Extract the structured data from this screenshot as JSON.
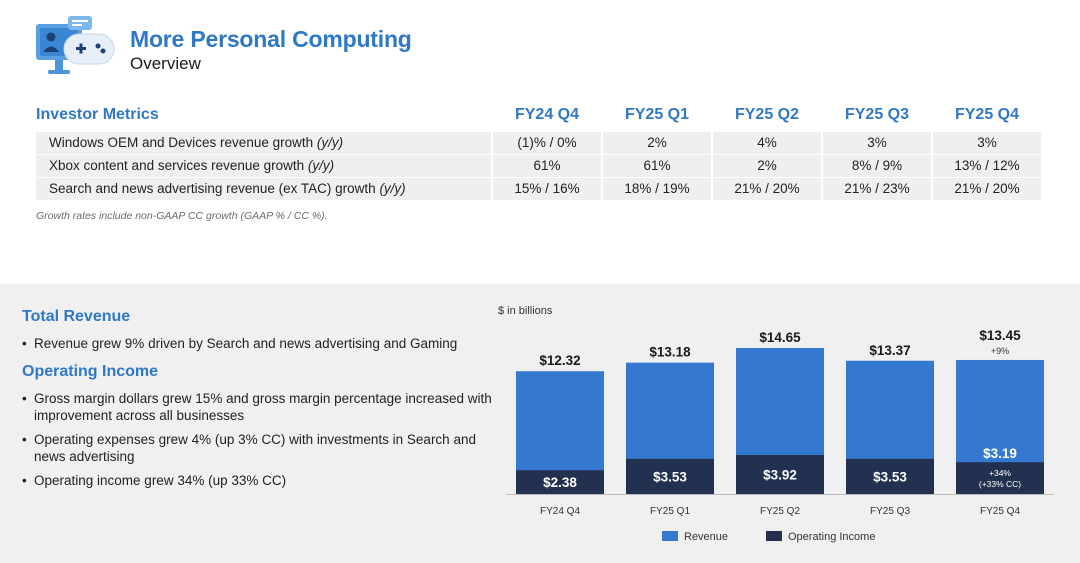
{
  "header": {
    "title": "More Personal Computing",
    "subtitle": "Overview"
  },
  "metrics": {
    "heading": "Investor Metrics",
    "columns": [
      "FY24 Q4",
      "FY25 Q1",
      "FY25 Q2",
      "FY25 Q3",
      "FY25 Q4"
    ],
    "rows": [
      {
        "label": "Windows OEM and Devices revenue growth",
        "suffix": "(y/y)",
        "values": [
          "(1)% / 0%",
          "2%",
          "4%",
          "3%",
          "3%"
        ]
      },
      {
        "label": "Xbox content and services revenue growth",
        "suffix": "(y/y)",
        "values": [
          "61%",
          "61%",
          "2%",
          "8% / 9%",
          "13% / 12%"
        ]
      },
      {
        "label": "Search and news advertising revenue (ex TAC) growth",
        "suffix": "(y/y)",
        "values": [
          "15% / 16%",
          "18% / 19%",
          "21% / 20%",
          "21% / 23%",
          "21% / 20%"
        ]
      }
    ],
    "note": "Growth rates include non-GAAP CC growth (GAAP % / CC %)."
  },
  "summary": {
    "revenue_title": "Total Revenue",
    "revenue_bullets": [
      "Revenue grew 9% driven by Search and news advertising and Gaming"
    ],
    "opinc_title": "Operating Income",
    "opinc_bullets": [
      "Gross margin dollars grew 15% and gross margin percentage increased with improvement across all businesses",
      "Operating expenses grew 4% (up 3% CC) with investments in Search and news advertising",
      "Operating income grew 34% (up 33% CC)"
    ]
  },
  "chart_data": {
    "type": "bar",
    "unit_label": "$ in billions",
    "categories": [
      "FY24 Q4",
      "FY25 Q1",
      "FY25 Q2",
      "FY25 Q3",
      "FY25 Q4"
    ],
    "series": [
      {
        "name": "Revenue",
        "values": [
          12.32,
          13.18,
          14.65,
          13.37,
          13.45
        ],
        "labels": [
          "$12.32",
          "$13.18",
          "$14.65",
          "$13.37",
          "$13.45"
        ],
        "color": "#3478d0"
      },
      {
        "name": "Operating Income",
        "values": [
          2.38,
          3.53,
          3.92,
          3.53,
          3.19
        ],
        "labels": [
          "$2.38",
          "$3.53",
          "$3.92",
          "$3.53",
          "$3.19"
        ],
        "color": "#22314f"
      }
    ],
    "annotations": [
      {
        "category": "FY25 Q4",
        "series": "Revenue",
        "text": "+9%"
      },
      {
        "category": "FY25 Q4",
        "series": "Operating Income",
        "lines": [
          "+34%",
          "(+33% CC)"
        ]
      }
    ],
    "ylim": [
      0,
      14.65
    ],
    "grid": false,
    "legend": "bottom"
  },
  "colors": {
    "accent": "#2f78c8",
    "panel_bg": "#f0f0f0",
    "row_bg": "#efefef"
  }
}
